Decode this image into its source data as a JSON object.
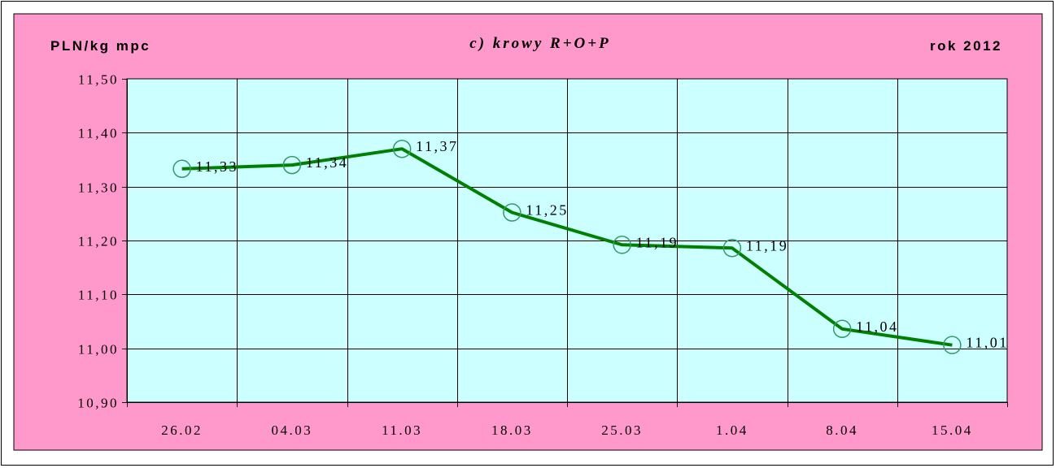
{
  "chart_data": {
    "type": "line",
    "title": "c) krowy R+O+P",
    "ylabel": "PLN/kg mpc",
    "year_label": "rok 2012",
    "categories": [
      "26.02",
      "04.03",
      "11.03",
      "18.03",
      "25.03",
      "1.04",
      "8.04",
      "15.04"
    ],
    "series": [
      {
        "values": [
          11.33,
          11.34,
          11.37,
          11.25,
          11.19,
          11.19,
          11.04,
          11.01
        ],
        "plot_values": [
          11.333,
          11.34,
          11.37,
          11.252,
          11.192,
          11.186,
          11.036,
          11.006
        ],
        "labels": [
          "11,33",
          "11,34",
          "11,37",
          "11,25",
          "11,19",
          "11,19",
          "11,04",
          "11,01"
        ]
      }
    ],
    "ylim": [
      10.9,
      11.5
    ],
    "yticks": [
      "10,90",
      "11,00",
      "11,10",
      "11,20",
      "11,30",
      "11,40",
      "11,50"
    ],
    "grid": true,
    "colors": {
      "frame_bg": "#ff99cc",
      "plot_bg": "#ccffff",
      "line": "#008000",
      "marker": "#339966"
    }
  }
}
